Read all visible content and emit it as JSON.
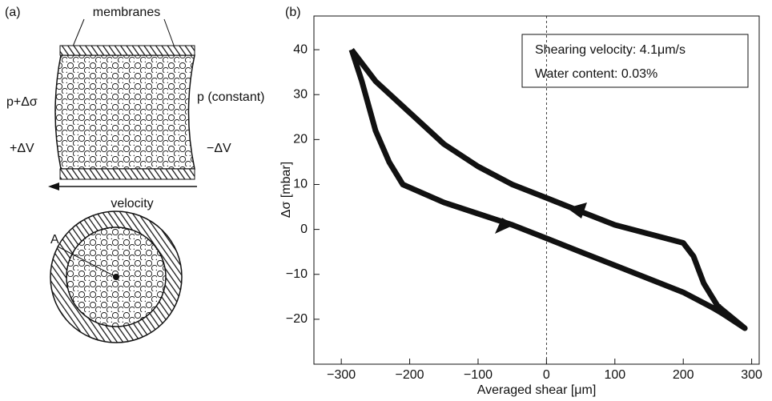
{
  "panel_a": {
    "label": "(a)",
    "membranes": "membranes",
    "p_left": "p+Δσ",
    "p_right": "p (constant)",
    "dv_left": "+ΔV",
    "dv_right": "−ΔV",
    "velocity": "velocity",
    "point": "A"
  },
  "chart_data": {
    "type": "line",
    "panel_label": "(b)",
    "annotations": [
      "Shearing velocity: 4.1μm/s",
      "Water content: 0.03%"
    ],
    "x_label": "Averaged shear [μm]",
    "y_label": "Δσ [mbar]",
    "x": [
      -285,
      -270,
      -250,
      -230,
      -210,
      -150,
      -100,
      -50,
      0,
      50,
      100,
      150,
      200,
      250,
      290,
      250,
      230,
      215,
      200,
      150,
      100,
      50,
      0,
      -50,
      -100,
      -150,
      -200,
      -250,
      -285
    ],
    "values": [
      40,
      33,
      22,
      15,
      10,
      6,
      3.5,
      1,
      -2,
      -5,
      -8,
      -11,
      -14,
      -18,
      -22,
      -17,
      -12,
      -6,
      -3,
      -1,
      1,
      4,
      7,
      10,
      14,
      19,
      26,
      33,
      40
    ],
    "color": "#111111",
    "vline": 0,
    "xlim": [
      -340,
      311
    ],
    "ylim": [
      -30,
      47.5
    ],
    "xticks": [
      {
        "value": -300,
        "label": "−300"
      },
      {
        "value": -200,
        "label": "−200"
      },
      {
        "value": -100,
        "label": "−100"
      },
      0,
      100,
      200,
      300
    ],
    "yticks": [
      {
        "value": -20,
        "label": "−20"
      },
      {
        "value": -10,
        "label": "−10"
      },
      0,
      10,
      20,
      30,
      40
    ]
  }
}
